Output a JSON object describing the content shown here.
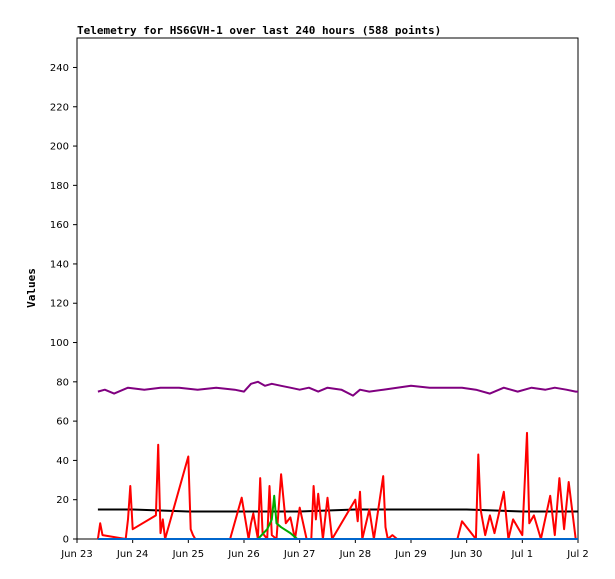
{
  "chart_data": {
    "type": "line",
    "title": "Telemetry for HS6GVH-1 over last 240 hours (588 points)",
    "xlabel": "",
    "ylabel": "Values",
    "xlim": [
      "2023-06-23T00:00",
      "2023-07-02T00:00"
    ],
    "ylim": [
      0,
      255
    ],
    "x_ticks": [
      "Jun 23",
      "Jun 24",
      "Jun 25",
      "Jun 26",
      "Jun 27",
      "Jun 28",
      "Jun 29",
      "Jun 30",
      "Jul 1",
      "Jul 2"
    ],
    "y_ticks": [
      0,
      20,
      40,
      60,
      80,
      100,
      120,
      140,
      160,
      180,
      200,
      220,
      240
    ],
    "grid": false,
    "series": [
      {
        "color": "#800080",
        "x": [
          "2023-06-23T09:00",
          "2023-06-23T12:00",
          "2023-06-23T16:00",
          "2023-06-23T22:00",
          "2023-06-24T05:00",
          "2023-06-24T12:00",
          "2023-06-24T20:00",
          "2023-06-25T04:00",
          "2023-06-25T12:00",
          "2023-06-25T20:00",
          "2023-06-26T00:00",
          "2023-06-26T03:00",
          "2023-06-26T06:00",
          "2023-06-26T09:00",
          "2023-06-26T12:00",
          "2023-06-26T16:00",
          "2023-06-26T20:00",
          "2023-06-27T00:00",
          "2023-06-27T04:00",
          "2023-06-27T08:00",
          "2023-06-27T12:00",
          "2023-06-27T18:00",
          "2023-06-27T23:00",
          "2023-06-28T02:00",
          "2023-06-28T06:00",
          "2023-06-28T12:00",
          "2023-06-28T18:00",
          "2023-06-29T00:00",
          "2023-06-29T08:00",
          "2023-06-29T16:00",
          "2023-06-29T22:00",
          "2023-06-30T04:00",
          "2023-06-30T10:00",
          "2023-06-30T16:00",
          "2023-06-30T22:00",
          "2023-07-01T04:00",
          "2023-07-01T10:00",
          "2023-07-01T14:00",
          "2023-07-01T19:00",
          "2023-07-01T23:00",
          "2023-07-02T00:00"
        ],
        "values": [
          75,
          76,
          74,
          77,
          76,
          77,
          77,
          76,
          77,
          76,
          75,
          79,
          80,
          78,
          79,
          78,
          77,
          76,
          77,
          75,
          77,
          76,
          73,
          76,
          75,
          76,
          77,
          78,
          77,
          77,
          77,
          76,
          74,
          77,
          75,
          77,
          76,
          77,
          76,
          75,
          75
        ]
      },
      {
        "color": "#000000",
        "x": [
          "2023-06-23T09:00",
          "2023-06-24T00:00",
          "2023-06-25T00:00",
          "2023-06-26T00:00",
          "2023-06-26T12:00",
          "2023-06-27T00:00",
          "2023-06-28T00:00",
          "2023-06-29T00:00",
          "2023-06-30T00:00",
          "2023-07-01T00:00",
          "2023-07-02T00:00"
        ],
        "values": [
          15,
          15,
          14,
          14,
          14,
          14,
          15,
          15,
          15,
          14,
          14
        ]
      },
      {
        "color": "#ff0000",
        "x": [
          "2023-06-23T09:00",
          "2023-06-23T10:00",
          "2023-06-23T11:00",
          "2023-06-23T21:00",
          "2023-06-23T22:00",
          "2023-06-23T23:00",
          "2023-06-24T00:00",
          "2023-06-24T10:00",
          "2023-06-24T11:00",
          "2023-06-24T12:00",
          "2023-06-24T13:00",
          "2023-06-24T14:00",
          "2023-06-25T00:00",
          "2023-06-25T01:00",
          "2023-06-25T02:00",
          "2023-06-25T03:00",
          "2023-06-25T18:00",
          "2023-06-25T23:00",
          "2023-06-26T02:00",
          "2023-06-26T03:00",
          "2023-06-26T04:00",
          "2023-06-26T06:00",
          "2023-06-26T07:00",
          "2023-06-26T08:00",
          "2023-06-26T10:00",
          "2023-06-26T11:00",
          "2023-06-26T12:00",
          "2023-06-26T14:00",
          "2023-06-26T16:00",
          "2023-06-26T18:00",
          "2023-06-26T20:00",
          "2023-06-26T22:00",
          "2023-06-27T00:00",
          "2023-06-27T03:00",
          "2023-06-27T05:00",
          "2023-06-27T06:00",
          "2023-06-27T07:00",
          "2023-06-27T08:00",
          "2023-06-27T10:00",
          "2023-06-27T12:00",
          "2023-06-27T14:00",
          "2023-06-28T00:00",
          "2023-06-28T01:00",
          "2023-06-28T02:00",
          "2023-06-28T03:00",
          "2023-06-28T06:00",
          "2023-06-28T08:00",
          "2023-06-28T12:00",
          "2023-06-28T13:00",
          "2023-06-28T14:00",
          "2023-06-28T16:00",
          "2023-06-28T18:00",
          "2023-06-29T20:00",
          "2023-06-29T22:00",
          "2023-06-30T04:00",
          "2023-06-30T05:00",
          "2023-06-30T06:00",
          "2023-06-30T08:00",
          "2023-06-30T10:00",
          "2023-06-30T12:00",
          "2023-06-30T16:00",
          "2023-06-30T18:00",
          "2023-06-30T20:00",
          "2023-07-01T00:00",
          "2023-07-01T02:00",
          "2023-07-01T03:00",
          "2023-07-01T05:00",
          "2023-07-01T08:00",
          "2023-07-01T12:00",
          "2023-07-01T14:00",
          "2023-07-01T16:00",
          "2023-07-01T18:00",
          "2023-07-01T20:00",
          "2023-07-01T23:00"
        ],
        "values": [
          0,
          8,
          2,
          0,
          10,
          27,
          5,
          12,
          48,
          3,
          10,
          0,
          42,
          5,
          2,
          0,
          0,
          21,
          0,
          8,
          13,
          0,
          31,
          3,
          0,
          27,
          2,
          0,
          33,
          8,
          11,
          0,
          16,
          0,
          0,
          27,
          10,
          23,
          0,
          21,
          0,
          20,
          9,
          24,
          0,
          15,
          0,
          32,
          6,
          0,
          2,
          0,
          0,
          9,
          0,
          43,
          15,
          2,
          12,
          3,
          24,
          0,
          10,
          2,
          54,
          8,
          12,
          0,
          22,
          2,
          31,
          5,
          29,
          0
        ]
      },
      {
        "color": "#00aa00",
        "x": [
          "2023-06-26T06:00",
          "2023-06-26T10:00",
          "2023-06-26T12:00",
          "2023-06-26T13:00",
          "2023-06-26T14:00",
          "2023-06-26T16:00",
          "2023-06-26T20:00",
          "2023-06-26T23:00"
        ],
        "values": [
          0,
          5,
          10,
          22,
          8,
          6,
          3,
          0
        ]
      },
      {
        "color": "#0066cc",
        "x": [
          "2023-06-23T09:00",
          "2023-07-02T00:00"
        ],
        "values": [
          0,
          0
        ]
      }
    ]
  }
}
